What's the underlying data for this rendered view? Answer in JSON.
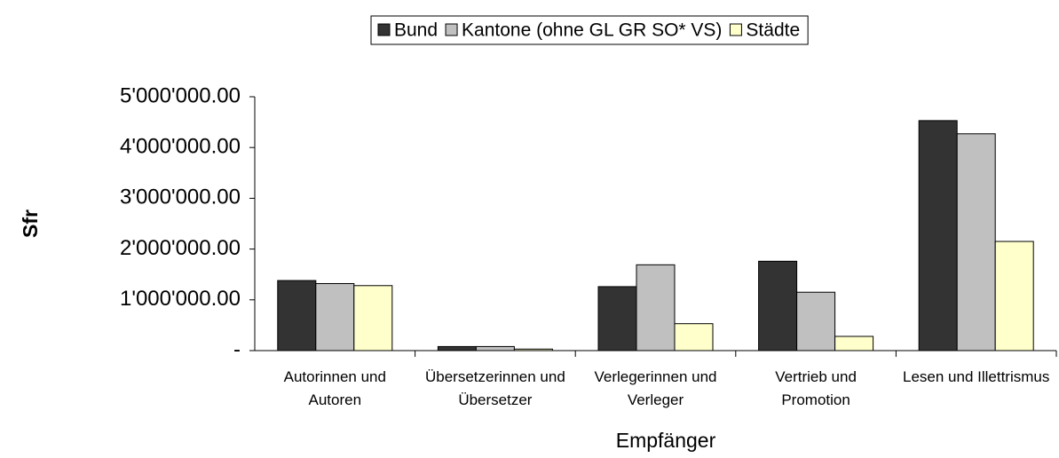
{
  "chart_data": {
    "type": "bar",
    "x_label": "Empfänger",
    "y_label": "Sfr",
    "categories": [
      "Autorinnen und Autoren",
      "Übersetzerinnen und Übersetzer",
      "Verlegerinnen und Verleger",
      "Vertrieb und Promotion",
      "Lesen und Illettrismus"
    ],
    "series": [
      {
        "name": "Bund",
        "color": "#333333",
        "values": [
          1380000,
          80000,
          1260000,
          1760000,
          4530000
        ]
      },
      {
        "name": "Kantone (ohne GL GR SO* VS)",
        "color": "#c0c0c0",
        "values": [
          1320000,
          80000,
          1690000,
          1150000,
          4270000
        ]
      },
      {
        "name": "Städte",
        "color": "#ffffcc",
        "values": [
          1280000,
          30000,
          530000,
          280000,
          2150000
        ]
      }
    ],
    "ylim": [
      0,
      5000000
    ],
    "yticks": [
      {
        "value": 0,
        "label": "-"
      },
      {
        "value": 1000000,
        "label": "1'000'000.00"
      },
      {
        "value": 2000000,
        "label": "2'000'000.00"
      },
      {
        "value": 3000000,
        "label": "3'000'000.00"
      },
      {
        "value": 4000000,
        "label": "4'000'000.00"
      },
      {
        "value": 5000000,
        "label": "5'000'000.00"
      }
    ],
    "legend": "top"
  }
}
